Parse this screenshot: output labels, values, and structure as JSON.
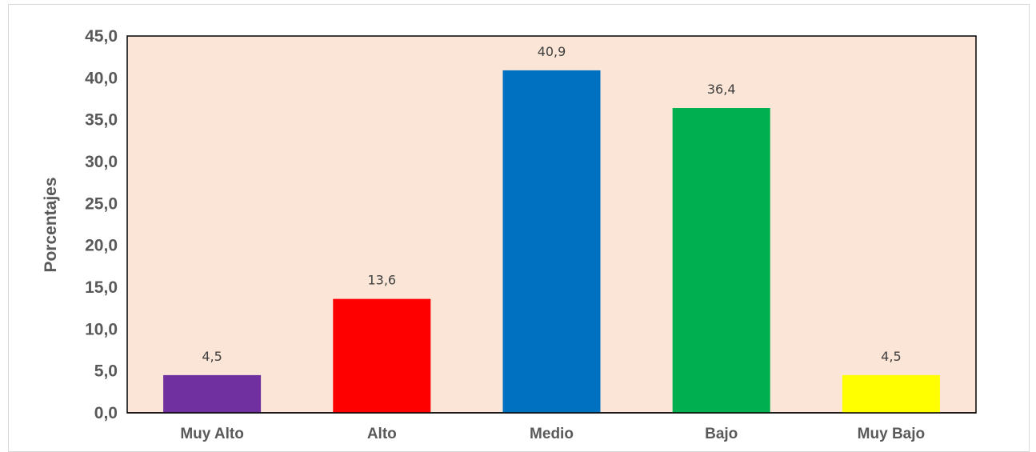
{
  "chart_data": {
    "type": "bar",
    "title": "",
    "xlabel": "",
    "ylabel": "Porcentajes",
    "ylim": [
      0,
      45
    ],
    "y_ticks": [
      "0,0",
      "5,0",
      "10,0",
      "15,0",
      "20,0",
      "25,0",
      "30,0",
      "35,0",
      "40,0",
      "45,0"
    ],
    "categories": [
      "Muy Alto",
      "Alto",
      "Medio",
      "Bajo",
      "Muy Bajo"
    ],
    "values": [
      4.5,
      13.6,
      40.9,
      36.4,
      4.5
    ],
    "data_labels": [
      "4,5",
      "13,6",
      "40,9",
      "36,4",
      "4,5"
    ],
    "bar_colors": [
      "#7030a0",
      "#ff0000",
      "#0070c0",
      "#00b050",
      "#ffff00"
    ],
    "plot_background": "#fbe5d6",
    "grid": false,
    "legend": "none"
  }
}
